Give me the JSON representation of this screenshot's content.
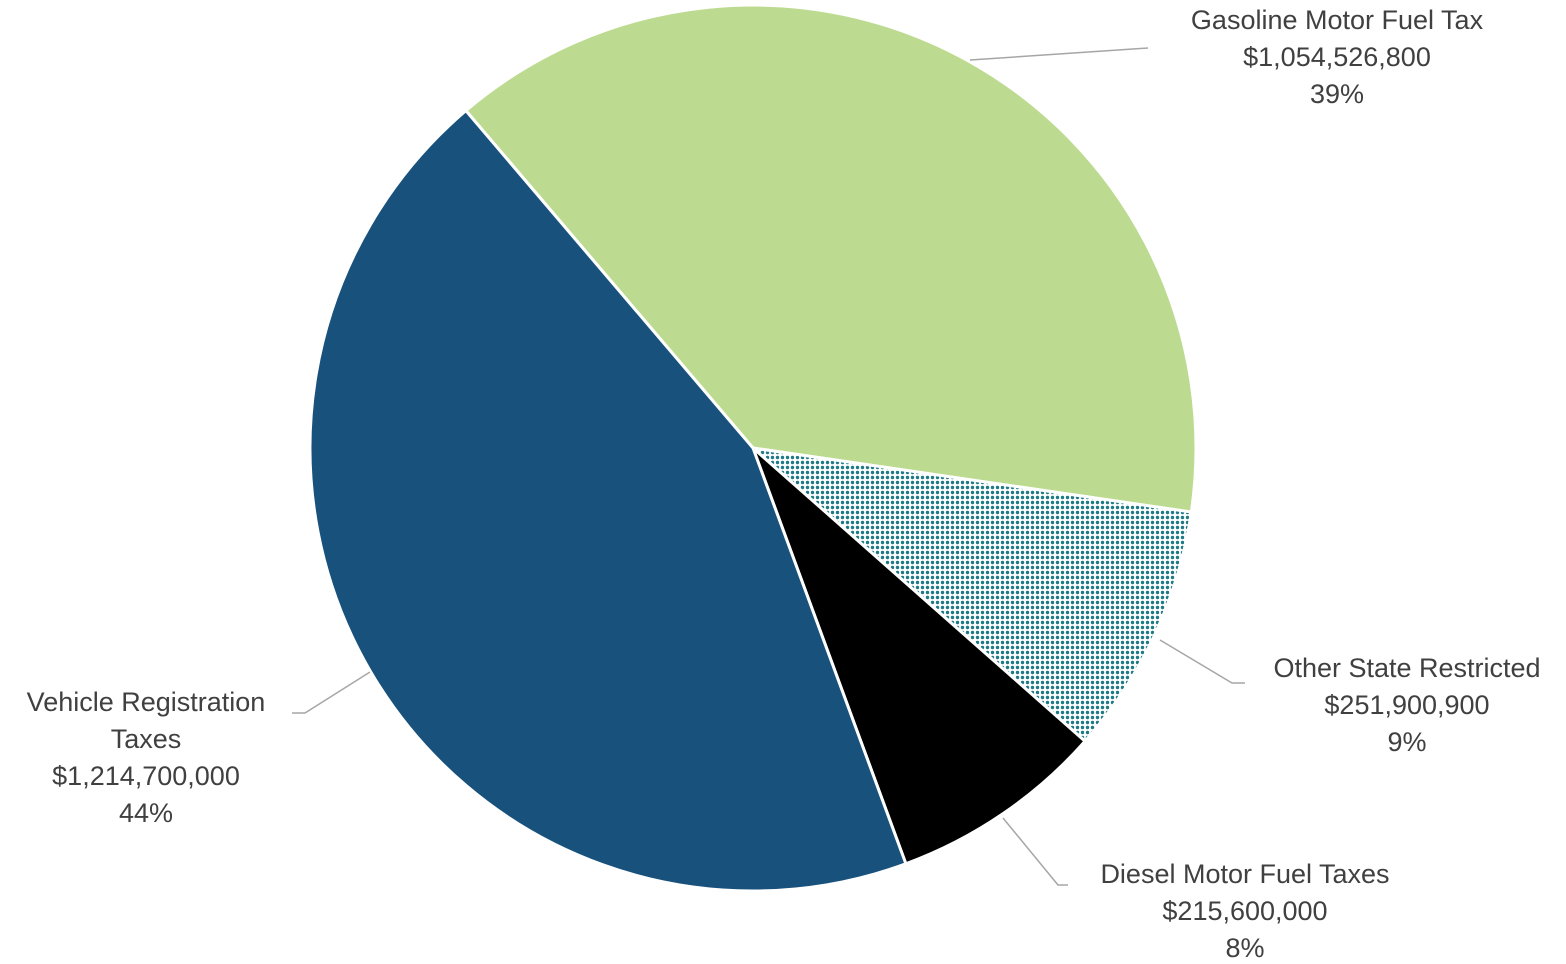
{
  "chart_data": {
    "type": "pie",
    "categories": [
      "Gasoline Motor Fuel Tax",
      "Other State Restricted",
      "Diesel Motor Fuel Taxes",
      "Vehicle Registration Taxes"
    ],
    "values": [
      1054526800,
      251900900,
      215600000,
      1214700000
    ],
    "value_labels": [
      "$1,054,526,800",
      "$251,900,900",
      "$215,600,000",
      "$1,214,700,000"
    ],
    "percent_labels": [
      "39%",
      "9%",
      "8%",
      "44%"
    ],
    "colors": [
      "#bddb90",
      "#1f7a85",
      "#000000",
      "#17517c"
    ],
    "patterns": [
      null,
      "dots",
      null,
      null
    ]
  }
}
